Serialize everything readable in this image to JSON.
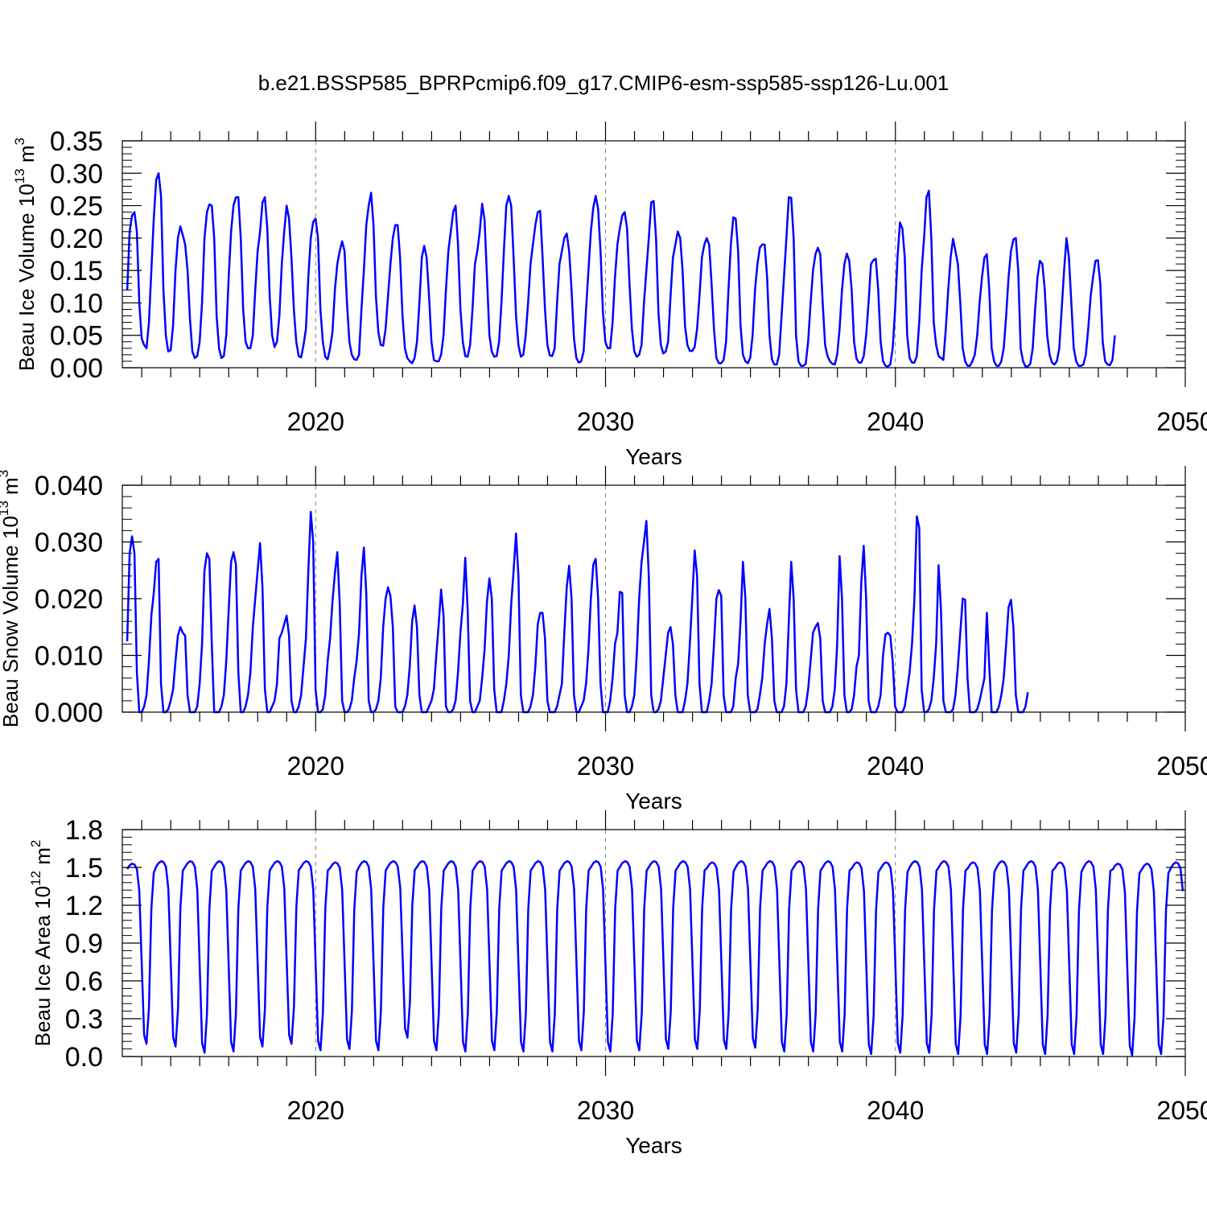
{
  "title": "b.e21.BSSP585_BPRPcmip6.f09_g17.CMIP6-esm-ssp585-ssp126-Lu.001",
  "colors": {
    "line": "#0000ff",
    "axis": "#000000",
    "grid": "#808080"
  },
  "chart_data": [
    {
      "type": "line",
      "title": "b.e21.BSSP585_BPRPcmip6.f09_g17.CMIP6-esm-ssp585-ssp126-Lu.001",
      "ylabel_main": "Beau Ice Volume 10",
      "ylabel_sup": "13",
      "ylabel_unit": " m",
      "ylabel_unit_sup": "3",
      "xlabel": "Years",
      "xlim": [
        2013.33,
        2050.0
      ],
      "ylim": [
        0.0,
        0.35
      ],
      "yticks": [
        "0.00",
        "0.05",
        "0.10",
        "0.15",
        "0.20",
        "0.25",
        "0.30",
        "0.35"
      ],
      "xticks": [
        "2020",
        "2030",
        "2040",
        "2050"
      ],
      "grid": "dashed vertical lines at decades",
      "series": [
        {
          "name": "Beau Ice Volume",
          "start_year": 2013.5,
          "step_years": 0.0833,
          "values": [
            0.12,
            0.21,
            0.235,
            0.24,
            0.21,
            0.1,
            0.045,
            0.035,
            0.03,
            0.07,
            0.15,
            0.23,
            0.29,
            0.3,
            0.265,
            0.12,
            0.05,
            0.025,
            0.027,
            0.065,
            0.15,
            0.2,
            0.218,
            0.205,
            0.19,
            0.15,
            0.075,
            0.025,
            0.015,
            0.018,
            0.04,
            0.1,
            0.2,
            0.24,
            0.252,
            0.25,
            0.2,
            0.08,
            0.03,
            0.015,
            0.018,
            0.05,
            0.14,
            0.21,
            0.25,
            0.263,
            0.263,
            0.2,
            0.09,
            0.04,
            0.03,
            0.03,
            0.05,
            0.12,
            0.18,
            0.21,
            0.255,
            0.263,
            0.215,
            0.11,
            0.05,
            0.032,
            0.04,
            0.08,
            0.16,
            0.21,
            0.25,
            0.23,
            0.17,
            0.09,
            0.04,
            0.018,
            0.016,
            0.035,
            0.06,
            0.14,
            0.2,
            0.225,
            0.23,
            0.2,
            0.09,
            0.04,
            0.017,
            0.013,
            0.03,
            0.055,
            0.12,
            0.16,
            0.18,
            0.195,
            0.18,
            0.1,
            0.04,
            0.02,
            0.013,
            0.012,
            0.02,
            0.09,
            0.15,
            0.22,
            0.25,
            0.27,
            0.22,
            0.11,
            0.055,
            0.035,
            0.034,
            0.06,
            0.11,
            0.16,
            0.2,
            0.22,
            0.22,
            0.17,
            0.08,
            0.03,
            0.015,
            0.01,
            0.007,
            0.015,
            0.04,
            0.1,
            0.17,
            0.188,
            0.17,
            0.11,
            0.04,
            0.012,
            0.01,
            0.01,
            0.02,
            0.05,
            0.12,
            0.18,
            0.21,
            0.24,
            0.25,
            0.19,
            0.09,
            0.04,
            0.018,
            0.017,
            0.035,
            0.09,
            0.16,
            0.18,
            0.21,
            0.253,
            0.228,
            0.14,
            0.05,
            0.025,
            0.017,
            0.018,
            0.04,
            0.1,
            0.18,
            0.25,
            0.265,
            0.25,
            0.17,
            0.08,
            0.035,
            0.017,
            0.02,
            0.05,
            0.1,
            0.16,
            0.19,
            0.22,
            0.24,
            0.242,
            0.17,
            0.09,
            0.035,
            0.019,
            0.018,
            0.03,
            0.1,
            0.16,
            0.18,
            0.2,
            0.207,
            0.18,
            0.12,
            0.045,
            0.015,
            0.008,
            0.01,
            0.025,
            0.09,
            0.15,
            0.21,
            0.247,
            0.265,
            0.245,
            0.18,
            0.085,
            0.04,
            0.03,
            0.03,
            0.07,
            0.14,
            0.19,
            0.215,
            0.235,
            0.24,
            0.215,
            0.13,
            0.06,
            0.025,
            0.017,
            0.02,
            0.035,
            0.1,
            0.15,
            0.2,
            0.255,
            0.257,
            0.2,
            0.085,
            0.035,
            0.022,
            0.025,
            0.04,
            0.11,
            0.17,
            0.19,
            0.21,
            0.2,
            0.15,
            0.065,
            0.035,
            0.026,
            0.026,
            0.032,
            0.06,
            0.11,
            0.17,
            0.19,
            0.2,
            0.19,
            0.13,
            0.06,
            0.015,
            0.007,
            0.007,
            0.012,
            0.04,
            0.12,
            0.19,
            0.232,
            0.23,
            0.18,
            0.065,
            0.02,
            0.01,
            0.007,
            0.015,
            0.05,
            0.12,
            0.16,
            0.185,
            0.19,
            0.19,
            0.14,
            0.05,
            0.013,
            0.005,
            0.005,
            0.02,
            0.08,
            0.14,
            0.2,
            0.263,
            0.262,
            0.2,
            0.05,
            0.01,
            0.003,
            0.003,
            0.006,
            0.04,
            0.1,
            0.15,
            0.175,
            0.185,
            0.175,
            0.1,
            0.035,
            0.018,
            0.01,
            0.006,
            0.005,
            0.02,
            0.06,
            0.12,
            0.16,
            0.176,
            0.165,
            0.12,
            0.04,
            0.014,
            0.008,
            0.008,
            0.018,
            0.05,
            0.1,
            0.16,
            0.166,
            0.168,
            0.12,
            0.04,
            0.01,
            0.003,
            0.002,
            0.005,
            0.03,
            0.09,
            0.17,
            0.224,
            0.215,
            0.17,
            0.05,
            0.015,
            0.008,
            0.008,
            0.018,
            0.07,
            0.15,
            0.2,
            0.263,
            0.273,
            0.2,
            0.07,
            0.035,
            0.018,
            0.015,
            0.012,
            0.06,
            0.12,
            0.17,
            0.199,
            0.18,
            0.16,
            0.1,
            0.03,
            0.01,
            0.003,
            0.003,
            0.01,
            0.02,
            0.05,
            0.1,
            0.14,
            0.17,
            0.175,
            0.12,
            0.03,
            0.01,
            0.003,
            0.003,
            0.01,
            0.03,
            0.08,
            0.14,
            0.18,
            0.198,
            0.2,
            0.15,
            0.03,
            0.01,
            0.002,
            0.002,
            0.006,
            0.03,
            0.09,
            0.14,
            0.165,
            0.16,
            0.12,
            0.05,
            0.02,
            0.008,
            0.005,
            0.01,
            0.03,
            0.09,
            0.15,
            0.2,
            0.17,
            0.1,
            0.03,
            0.01,
            0.003,
            0.003,
            0.005,
            0.02,
            0.06,
            0.11,
            0.14,
            0.165,
            0.166,
            0.13,
            0.04,
            0.01,
            0.005,
            0.004,
            0.012,
            0.05
          ]
        }
      ]
    },
    {
      "type": "line",
      "ylabel_main": "Beau Snow Volume 10",
      "ylabel_sup": "13",
      "ylabel_unit": " m",
      "ylabel_unit_sup": "3",
      "xlabel": "Years",
      "xlim": [
        2013.33,
        2050.0
      ],
      "ylim": [
        0.0,
        0.04
      ],
      "yticks": [
        "0.000",
        "0.010",
        "0.020",
        "0.030",
        "0.040"
      ],
      "xticks": [
        "2020",
        "2030",
        "2040",
        "2050"
      ],
      "grid": "dashed vertical lines at decades",
      "series": [
        {
          "name": "Beau Snow Volume",
          "start_year": 2013.5,
          "step_years": 0.0833,
          "values": [
            0.0125,
            0.028,
            0.031,
            0.028,
            0.007,
            0.0,
            0.0,
            0.001,
            0.003,
            0.009,
            0.017,
            0.021,
            0.0265,
            0.027,
            0.005,
            0.0,
            0.0,
            0.0005,
            0.002,
            0.004,
            0.009,
            0.0135,
            0.015,
            0.014,
            0.0135,
            0.003,
            0.0,
            0.0,
            0.0,
            0.001,
            0.005,
            0.012,
            0.025,
            0.028,
            0.027,
            0.012,
            0.0,
            0.0,
            0.0,
            0.001,
            0.003,
            0.009,
            0.018,
            0.0265,
            0.0282,
            0.026,
            0.007,
            0.0,
            0.0,
            0.001,
            0.003,
            0.007,
            0.015,
            0.02,
            0.025,
            0.0298,
            0.022,
            0.004,
            0.0,
            0.0,
            0.001,
            0.002,
            0.005,
            0.013,
            0.014,
            0.0155,
            0.017,
            0.0135,
            0.002,
            0.0,
            0.0,
            0.001,
            0.003,
            0.008,
            0.013,
            0.025,
            0.0353,
            0.03,
            0.004,
            0.0,
            0.0,
            0.0005,
            0.003,
            0.009,
            0.013,
            0.0195,
            0.0245,
            0.0282,
            0.019,
            0.002,
            0.0,
            0.0,
            0.0005,
            0.002,
            0.006,
            0.009,
            0.014,
            0.024,
            0.029,
            0.021,
            0.002,
            0.0,
            0.0,
            0.0005,
            0.002,
            0.006,
            0.015,
            0.02,
            0.022,
            0.0205,
            0.015,
            0.001,
            0.0,
            0.0,
            0.0,
            0.001,
            0.003,
            0.008,
            0.016,
            0.0188,
            0.015,
            0.003,
            0.0,
            0.0,
            0.0,
            0.001,
            0.002,
            0.004,
            0.01,
            0.0155,
            0.0216,
            0.017,
            0.001,
            0.0,
            0.0,
            0.0005,
            0.002,
            0.007,
            0.014,
            0.019,
            0.0272,
            0.018,
            0.002,
            0.0,
            0.0,
            0.001,
            0.002,
            0.006,
            0.011,
            0.0195,
            0.0236,
            0.02,
            0.004,
            0.0,
            0.0,
            0.0,
            0.002,
            0.005,
            0.01,
            0.019,
            0.025,
            0.0315,
            0.024,
            0.003,
            0.0,
            0.0,
            0.0,
            0.001,
            0.003,
            0.008,
            0.0155,
            0.0175,
            0.0175,
            0.013,
            0.002,
            0.0,
            0.0,
            0.0,
            0.001,
            0.003,
            0.005,
            0.014,
            0.022,
            0.0258,
            0.02,
            0.003,
            0.0,
            0.0,
            0.001,
            0.002,
            0.005,
            0.011,
            0.02,
            0.026,
            0.027,
            0.02,
            0.005,
            0.0,
            0.0,
            0.0,
            0.002,
            0.006,
            0.012,
            0.014,
            0.0212,
            0.021,
            0.003,
            0.0,
            0.0,
            0.001,
            0.003,
            0.01,
            0.02,
            0.0265,
            0.03,
            0.0337,
            0.024,
            0.003,
            0.0,
            0.0,
            0.0005,
            0.002,
            0.006,
            0.01,
            0.014,
            0.015,
            0.012,
            0.003,
            0.0,
            0.0,
            0.0,
            0.002,
            0.005,
            0.012,
            0.02,
            0.0285,
            0.024,
            0.005,
            0.0,
            0.0,
            0.0,
            0.002,
            0.005,
            0.012,
            0.02,
            0.0215,
            0.0205,
            0.003,
            0.0,
            0.0,
            0.0,
            0.001,
            0.006,
            0.0085,
            0.016,
            0.0265,
            0.02,
            0.003,
            0.0,
            0.0,
            0.0,
            0.0005,
            0.003,
            0.006,
            0.012,
            0.0155,
            0.0182,
            0.013,
            0.002,
            0.0,
            0.0,
            0.0,
            0.001,
            0.005,
            0.016,
            0.0265,
            0.02,
            0.004,
            0.0,
            0.0,
            0.0,
            0.001,
            0.004,
            0.009,
            0.014,
            0.015,
            0.0157,
            0.013,
            0.002,
            0.0,
            0.0,
            0.0,
            0.001,
            0.004,
            0.012,
            0.0275,
            0.02,
            0.003,
            0.0,
            0.0,
            0.0005,
            0.003,
            0.008,
            0.01,
            0.023,
            0.0293,
            0.02,
            0.002,
            0.0,
            0.0,
            0.0,
            0.001,
            0.003,
            0.01,
            0.0137,
            0.014,
            0.0135,
            0.009,
            0.001,
            0.0,
            0.0,
            0.0,
            0.001,
            0.004,
            0.007,
            0.012,
            0.02,
            0.0345,
            0.0325,
            0.004,
            0.0,
            0.0,
            0.0005,
            0.002,
            0.006,
            0.012,
            0.0259,
            0.018,
            0.002,
            0.0,
            0.0,
            0.0,
            0.0005,
            0.003,
            0.008,
            0.014,
            0.02,
            0.0198,
            0.006,
            0.0,
            0.0,
            0.0,
            0.0005,
            0.002,
            0.004,
            0.006,
            0.0175,
            0.008,
            0.0,
            0.0,
            0.0,
            0.001,
            0.003,
            0.006,
            0.012,
            0.0185,
            0.0198,
            0.015,
            0.003,
            0.0,
            0.0,
            0.0,
            0.001,
            0.0035
          ]
        }
      ]
    },
    {
      "type": "line",
      "ylabel_main": "Beau Ice Area 10",
      "ylabel_sup": "12",
      "ylabel_unit": " m",
      "ylabel_unit_sup": "2",
      "xlabel": "Years",
      "xlim": [
        2013.33,
        2050.0
      ],
      "ylim": [
        0.0,
        1.8
      ],
      "yticks": [
        "0.0",
        "0.3",
        "0.6",
        "0.9",
        "1.2",
        "1.5",
        "1.8"
      ],
      "xticks": [
        "2020",
        "2030",
        "2040",
        "2050"
      ],
      "grid": "dashed vertical lines at decades",
      "series": [
        {
          "name": "Beau Ice Area",
          "start_year": 2013.5,
          "period_values": {
            "maxima": [
              1.53,
              1.55,
              1.55,
              1.55,
              1.55,
              1.55,
              1.55,
              1.54,
              1.55,
              1.55,
              1.55,
              1.55,
              1.55,
              1.55,
              1.55,
              1.55,
              1.55,
              1.55,
              1.55,
              1.55,
              1.54,
              1.55,
              1.55,
              1.55,
              1.55,
              1.54,
              1.54,
              1.55,
              1.55,
              1.54,
              1.55,
              1.55,
              1.54,
              1.55,
              1.53,
              1.53,
              1.54
            ],
            "minima": [
              0.1,
              0.08,
              0.03,
              0.04,
              0.08,
              0.1,
              0.05,
              0.06,
              0.05,
              0.15,
              0.05,
              0.04,
              0.05,
              0.04,
              0.04,
              0.05,
              0.04,
              0.05,
              0.06,
              0.06,
              0.06,
              0.07,
              0.04,
              0.04,
              0.04,
              0.02,
              0.03,
              0.03,
              0.02,
              0.02,
              0.03,
              0.02,
              0.02,
              0.02,
              0.01,
              0.02,
              0.02
            ]
          }
        }
      ]
    }
  ]
}
